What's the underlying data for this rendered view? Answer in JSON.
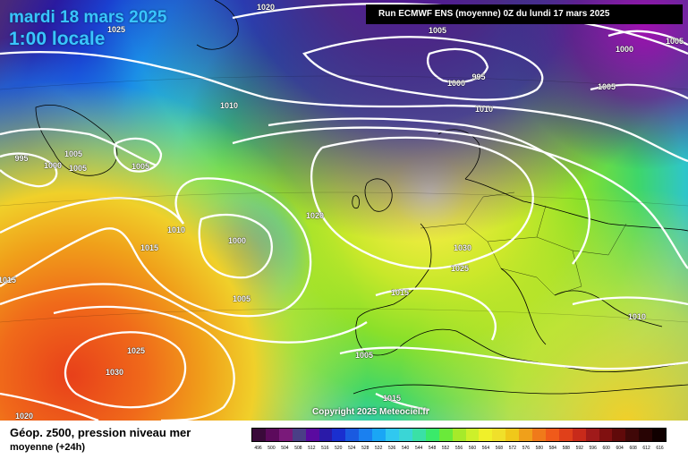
{
  "header": {
    "date": "mardi 18 mars 2025",
    "time": "1:00 locale",
    "run_info": "Run ECMWF ENS (moyenne) 0Z du lundi 17 mars 2025"
  },
  "map": {
    "copyright": "Copyright 2025 Meteociel.fr",
    "pressure_labels": [
      "1020",
      "1025",
      "1000",
      "1005",
      "995",
      "1000",
      "1005",
      "1010",
      "1010",
      "1005",
      "995",
      "1000",
      "1005",
      "1005",
      "1005",
      "1020",
      "1010",
      "1015",
      "1000",
      "1030",
      "1025",
      "1015",
      "1010",
      "1005",
      "1025",
      "1030",
      "1005",
      "1015",
      "1015",
      "1020"
    ]
  },
  "footer": {
    "parameter": "Géop. z500, pression niveau mer",
    "subtitle": "moyenne (+24h)"
  },
  "legend": {
    "ticks": [
      "496",
      "500",
      "504",
      "508",
      "512",
      "516",
      "520",
      "524",
      "528",
      "532",
      "536",
      "540",
      "544",
      "548",
      "552",
      "556",
      "560",
      "564",
      "568",
      "572",
      "576",
      "580",
      "584",
      "588",
      "592",
      "596",
      "600",
      "604",
      "608",
      "612",
      "616"
    ],
    "colors": [
      "#3a0a3a",
      "#5c0a5c",
      "#7a1a7a",
      "#4a3f86",
      "#5a0aa0",
      "#2a1aa8",
      "#1a2fcf",
      "#1a5ae0",
      "#1a80f0",
      "#1aa6f5",
      "#30c8f0",
      "#3ad6d6",
      "#3ae0a6",
      "#3aea6a",
      "#6aea3a",
      "#a6ea2a",
      "#cdf02a",
      "#f0f02a",
      "#f0e02a",
      "#f0c81a",
      "#f0a01a",
      "#f07a1a",
      "#f05a1a",
      "#e0401a",
      "#c82a1a",
      "#a01a1a",
      "#801010",
      "#600a0a",
      "#400808",
      "#280404",
      "#100000"
    ]
  }
}
